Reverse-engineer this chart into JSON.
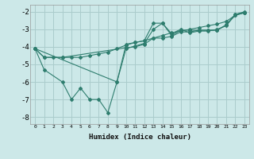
{
  "xlabel": "Humidex (Indice chaleur)",
  "bg_color": "#cce8e8",
  "grid_color": "#aacccc",
  "line_color": "#2e7d6e",
  "xlim": [
    -0.5,
    23.5
  ],
  "ylim": [
    -8.4,
    -1.6
  ],
  "xticks": [
    0,
    1,
    2,
    3,
    4,
    5,
    6,
    7,
    8,
    9,
    10,
    11,
    12,
    13,
    14,
    15,
    16,
    17,
    18,
    19,
    20,
    21,
    22,
    23
  ],
  "yticks": [
    -8,
    -7,
    -6,
    -5,
    -4,
    -3,
    -2
  ],
  "line1_x": [
    0,
    1,
    3,
    4,
    5,
    6,
    7,
    8,
    9,
    10,
    11,
    12,
    13,
    14,
    15,
    16,
    17,
    18,
    19,
    20,
    21,
    22,
    23
  ],
  "line1_y": [
    -4.1,
    -5.3,
    -6.0,
    -7.0,
    -6.35,
    -7.0,
    -7.0,
    -7.75,
    -6.0,
    -3.85,
    -3.75,
    -3.65,
    -2.65,
    -2.65,
    -3.25,
    -3.0,
    -3.2,
    -3.1,
    -3.1,
    -3.0,
    -2.8,
    -2.15,
    -2.0
  ],
  "line2_x": [
    0,
    1,
    3,
    10,
    11,
    12,
    13,
    14,
    15,
    16,
    17,
    18,
    19,
    20,
    21,
    22,
    23
  ],
  "line2_y": [
    -4.1,
    -4.6,
    -4.6,
    -4.05,
    -4.0,
    -3.85,
    -3.5,
    -3.5,
    -3.4,
    -3.15,
    -3.15,
    -3.05,
    -3.05,
    -3.05,
    -2.75,
    -2.2,
    -2.05
  ],
  "line3_x": [
    0,
    9,
    10,
    11,
    12,
    13,
    14,
    15,
    16,
    17,
    18,
    19,
    20,
    21,
    22,
    23
  ],
  "line3_y": [
    -4.1,
    -6.0,
    -4.1,
    -3.95,
    -3.8,
    -3.0,
    -2.65,
    -3.35,
    -3.05,
    -3.05,
    -3.05,
    -3.05,
    -3.05,
    -2.75,
    -2.15,
    -2.05
  ],
  "line4_x": [
    0,
    1,
    2,
    3,
    4,
    5,
    6,
    7,
    8,
    9,
    10,
    11,
    12,
    13,
    14,
    15,
    16,
    17,
    18,
    19,
    20,
    21,
    22,
    23
  ],
  "line4_y": [
    -4.1,
    -4.6,
    -4.6,
    -4.6,
    -4.6,
    -4.6,
    -4.5,
    -4.4,
    -4.3,
    -4.1,
    -3.9,
    -3.75,
    -3.65,
    -3.5,
    -3.35,
    -3.2,
    -3.1,
    -3.0,
    -2.9,
    -2.8,
    -2.7,
    -2.55,
    -2.2,
    -2.05
  ]
}
